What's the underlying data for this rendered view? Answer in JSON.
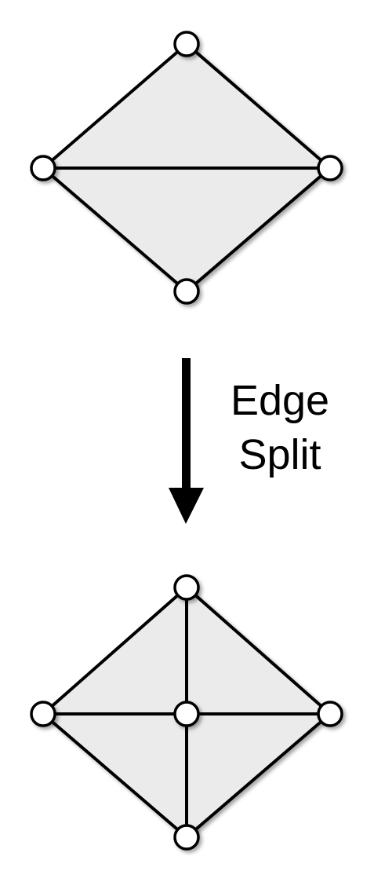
{
  "operation": {
    "label_line1": "Edge",
    "label_line2": "Split"
  },
  "colors": {
    "face_fill": "#ebebeb",
    "edge_stroke": "#000000",
    "vertex_fill": "#ffffff",
    "arrow": "#000000"
  }
}
